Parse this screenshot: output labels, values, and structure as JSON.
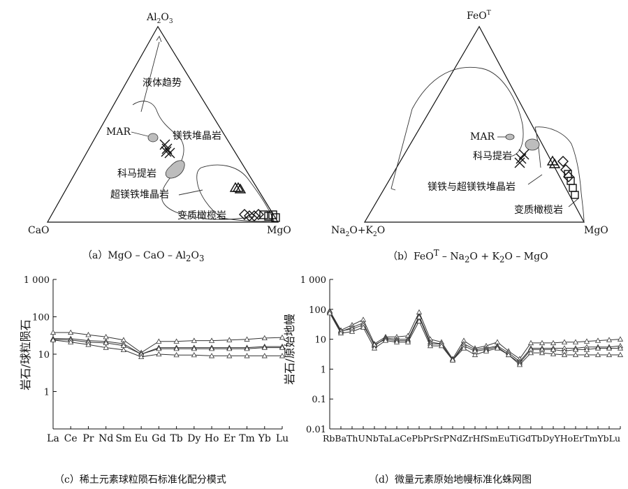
{
  "ternary_a": {
    "apex_top": "Al2O3",
    "apex_left": "CaO",
    "apex_right": "MgO",
    "fields": {
      "trend": "液体趋势",
      "mar": "MAR",
      "cumulate": "镁铁堆晶岩",
      "komatiite": "科马提岩",
      "ultramafic_cumulate": "超镁铁堆晶岩",
      "peridotite": "变质橄榄岩"
    },
    "caption": "（a）MgO – CaO – Al2O3"
  },
  "ternary_b": {
    "apex_top": "FeOT",
    "apex_left": "Na2O+K2O",
    "apex_right": "MgO",
    "fields": {
      "mar": "MAR",
      "komatiite": "科马提岩",
      "cumulate": "镁铁与超镁铁堆晶岩",
      "peridotite": "变质橄榄岩"
    },
    "caption": "（b）FeOT – Na2O + K2O – MgO"
  },
  "chart_data": [
    {
      "type": "line",
      "id": "c",
      "ylabel": "岩石/球粒陨石",
      "yscale": "log",
      "ylim": [
        0.1,
        1000
      ],
      "y_ticks": [
        "1 000",
        "100",
        "10",
        "1"
      ],
      "categories": [
        "La",
        "Ce",
        "Pr",
        "Nd",
        "Sm",
        "Eu",
        "Gd",
        "Tb",
        "Dy",
        "Ho",
        "Er",
        "Tm",
        "Yb",
        "Lu"
      ],
      "series": [
        {
          "values": [
            38,
            38,
            33,
            29,
            24,
            11,
            22,
            22,
            23,
            23,
            24,
            25,
            27,
            28
          ]
        },
        {
          "values": [
            26,
            26,
            23,
            22,
            19,
            10,
            15,
            15,
            15,
            15,
            15,
            15,
            16,
            16
          ]
        },
        {
          "values": [
            25,
            24,
            21,
            20,
            17,
            10,
            14,
            14,
            14,
            14,
            14,
            14,
            15,
            15
          ]
        },
        {
          "values": [
            24,
            21,
            18,
            15,
            13,
            8.5,
            10,
            9.5,
            9.5,
            9,
            9,
            9,
            9,
            9
          ]
        }
      ],
      "caption": "（c）稀土元素球粒陨石标准化配分模式"
    },
    {
      "type": "line",
      "id": "d",
      "ylabel": "岩石/原始地幔",
      "yscale": "log",
      "ylim": [
        0.01,
        1000
      ],
      "y_ticks": [
        "1 000",
        "100",
        "10",
        "1",
        "0.1",
        "0.01"
      ],
      "categories": [
        "Rb",
        "Ba",
        "Th",
        "U",
        "Nb",
        "Ta",
        "La",
        "Ce",
        "Pb",
        "Pr",
        "Sr",
        "P",
        "Nd",
        "Zr",
        "Hf",
        "Sm",
        "Eu",
        "Ti",
        "Gd",
        "Tb",
        "Dy",
        "Y",
        "Ho",
        "Er",
        "Tm",
        "Yb",
        "Lu"
      ],
      "x_label_text": "RbBaThUNbTaLaCePbPrSrPNdZrHfSmEuTiGdTbDyYHoErTmYbLu",
      "series": [
        {
          "values": [
            90,
            20,
            30,
            45,
            7,
            12,
            12,
            13,
            80,
            10,
            8,
            2.2,
            9,
            5,
            6,
            8,
            4,
            2.2,
            7.5,
            7.5,
            7.5,
            8,
            8,
            8.5,
            9,
            9.5,
            10
          ]
        },
        {
          "values": [
            80,
            18,
            25,
            35,
            6,
            11,
            10,
            10,
            60,
            8,
            7,
            2,
            7,
            4.5,
            5,
            6,
            3.5,
            1.8,
            5,
            5,
            5,
            5,
            5,
            5.5,
            5.5,
            5.5,
            6
          ]
        },
        {
          "values": [
            85,
            19,
            22,
            30,
            6.5,
            10,
            9,
            9,
            55,
            7,
            7,
            2,
            6,
            4,
            4.5,
            5.5,
            3,
            1.6,
            4.5,
            4.5,
            4.5,
            4,
            4.5,
            4.5,
            5,
            5,
            5
          ]
        },
        {
          "values": [
            75,
            16,
            18,
            25,
            5,
            9,
            8,
            8,
            40,
            6,
            6,
            2,
            5,
            3,
            4,
            5,
            3,
            1.4,
            3.5,
            3.5,
            3.2,
            3,
            3,
            3,
            3,
            3,
            3
          ]
        }
      ],
      "caption": "（d）微量元素原始地幔标准化蛛网图"
    }
  ]
}
